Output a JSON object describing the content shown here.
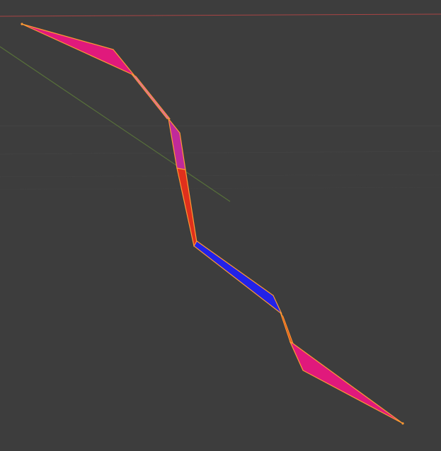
{
  "viewport": {
    "background_color": "#3d3d3d",
    "grid_line_color": "#454545",
    "x_axis_color": "#a84444",
    "y_axis_color": "#5c7a3a"
  },
  "mesh": {
    "edge_highlight_color": "#ff9933",
    "segments": [
      {
        "name": "top-flap",
        "fill": "#e0197c"
      },
      {
        "name": "upper-link-magenta",
        "fill": "#c02a9a"
      },
      {
        "name": "middle-link-red",
        "fill": "#e0301c"
      },
      {
        "name": "blue-link",
        "fill": "#2222e8"
      },
      {
        "name": "bottom-flap",
        "fill": "#e0197c"
      }
    ]
  }
}
